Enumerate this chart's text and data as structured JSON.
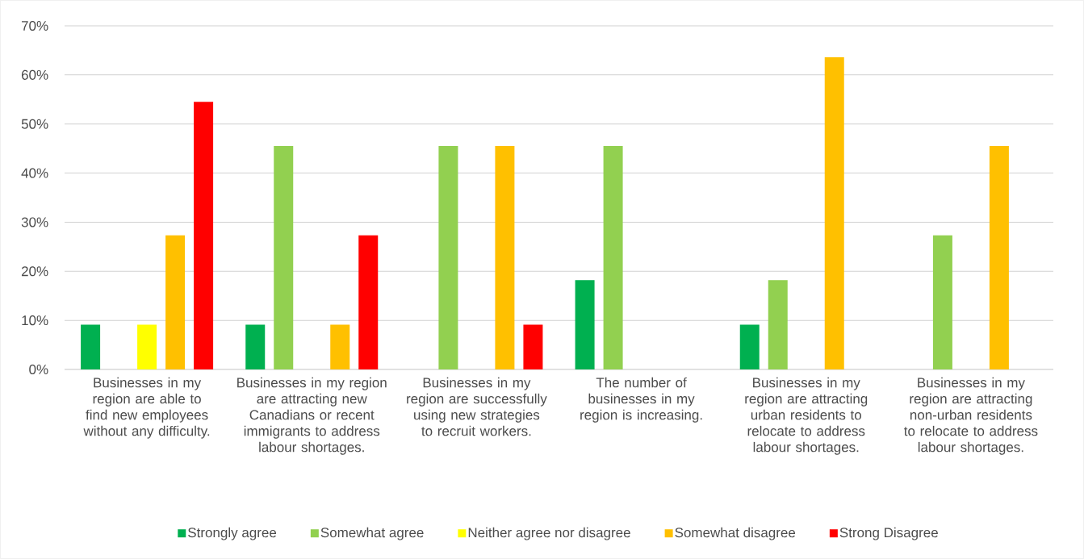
{
  "chart_data": {
    "type": "bar",
    "categories": [
      "Businesses in my region are able to find new employees without any difficulty.",
      "Businesses in my region are attracting new Canadians or recent immigrants to address labour shortages.",
      "Businesses in my region are successfully using new strategies to recruit workers.",
      "The number of businesses in my region is increasing.",
      "Businesses in my region are attracting urban residents to relocate to address labour shortages.",
      "Businesses in my region are attracting non-urban residents to relocate to address labour shortages."
    ],
    "series": [
      {
        "name": "Strongly agree",
        "color": "#00b050",
        "values": [
          9.1,
          9.1,
          null,
          18.2,
          9.1,
          null
        ]
      },
      {
        "name": "Somewhat agree",
        "color": "#92d050",
        "values": [
          null,
          45.5,
          45.5,
          45.5,
          18.2,
          27.3
        ]
      },
      {
        "name": "Neither agree nor disagree",
        "color": "#ffff00",
        "values": [
          9.1,
          null,
          null,
          null,
          null,
          null
        ]
      },
      {
        "name": "Somewhat disagree",
        "color": "#ffc000",
        "values": [
          27.3,
          9.1,
          45.5,
          null,
          63.6,
          45.5
        ]
      },
      {
        "name": "Strong Disagree",
        "color": "#ff0000",
        "values": [
          54.5,
          27.3,
          9.1,
          null,
          null,
          null
        ]
      }
    ],
    "ylim": [
      0,
      70
    ],
    "yticks": [
      {
        "value": 0,
        "label": "0%"
      },
      {
        "value": 10,
        "label": "10%"
      },
      {
        "value": 20,
        "label": "20%"
      },
      {
        "value": 30,
        "label": "30%"
      },
      {
        "value": 40,
        "label": "40%"
      },
      {
        "value": 50,
        "label": "50%"
      },
      {
        "value": 60,
        "label": "60%"
      },
      {
        "value": 70,
        "label": "70%"
      }
    ],
    "grid": "y",
    "legend": "bottom"
  }
}
